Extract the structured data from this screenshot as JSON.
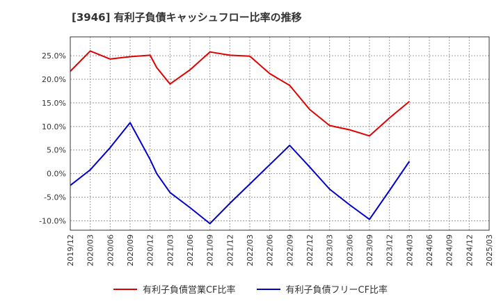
{
  "title": "[3946]  有利子負債キャッシュフロー比率の推移",
  "chart_data": {
    "type": "line",
    "title": "[3946]  有利子負債キャッシュフロー比率の推移",
    "x_ticks": [
      "2019/12",
      "2020/03",
      "2020/06",
      "2020/09",
      "2020/12",
      "2021/03",
      "2021/06",
      "2021/09",
      "2021/12",
      "2022/03",
      "2022/06",
      "2022/09",
      "2022/12",
      "2023/03",
      "2023/06",
      "2023/09",
      "2023/12",
      "2024/03",
      "2024/06",
      "2024/09",
      "2024/12",
      "2025/03"
    ],
    "y_ticks": [
      "-10.0%",
      "-5.0%",
      "0.0%",
      "5.0%",
      "10.0%",
      "15.0%",
      "20.0%",
      "25.0%"
    ],
    "y_tick_values": [
      -10,
      -5,
      0,
      5,
      10,
      15,
      20,
      25
    ],
    "ylim": [
      -12,
      29
    ],
    "grid": true,
    "legend_position": "bottom",
    "series": [
      {
        "name": "有利子負債営業CF比率",
        "color": "#e00000",
        "points": [
          [
            "2019/12",
            21.7
          ],
          [
            "2020/03",
            26.0
          ],
          [
            "2020/06",
            24.3
          ],
          [
            "2020/09",
            24.8
          ],
          [
            "2020/12",
            25.1
          ],
          [
            "2021/01",
            22.5
          ],
          [
            "2021/03",
            19.0
          ],
          [
            "2021/06",
            22.0
          ],
          [
            "2021/09",
            25.8
          ],
          [
            "2021/12",
            25.1
          ],
          [
            "2022/03",
            24.9
          ],
          [
            "2022/06",
            21.2
          ],
          [
            "2022/09",
            18.7
          ],
          [
            "2022/12",
            13.6
          ],
          [
            "2023/03",
            10.2
          ],
          [
            "2023/06",
            9.3
          ],
          [
            "2023/09",
            8.0
          ],
          [
            "2023/12",
            11.8
          ],
          [
            "2024/03",
            15.3
          ]
        ]
      },
      {
        "name": "有利子負債フリーCF比率",
        "color": "#0000cc",
        "points": [
          [
            "2019/12",
            -2.5
          ],
          [
            "2020/03",
            0.8
          ],
          [
            "2020/06",
            5.5
          ],
          [
            "2020/09",
            10.8
          ],
          [
            "2020/12",
            3.0
          ],
          [
            "2021/01",
            0.0
          ],
          [
            "2021/03",
            -4.0
          ],
          [
            "2021/06",
            -7.2
          ],
          [
            "2021/09",
            -10.6
          ],
          [
            "2021/12",
            -6.3
          ],
          [
            "2022/03",
            -2.2
          ],
          [
            "2022/06",
            1.9
          ],
          [
            "2022/09",
            6.0
          ],
          [
            "2022/12",
            1.4
          ],
          [
            "2023/03",
            -3.3
          ],
          [
            "2023/06",
            -6.6
          ],
          [
            "2023/09",
            -9.7
          ],
          [
            "2023/12",
            -3.6
          ],
          [
            "2024/03",
            2.6
          ]
        ]
      }
    ]
  }
}
